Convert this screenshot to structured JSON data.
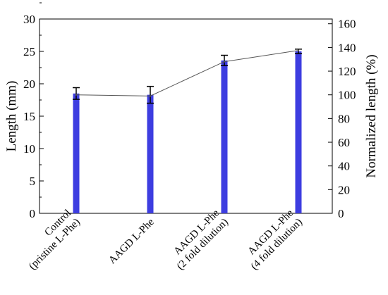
{
  "chart_data": {
    "type": "bar",
    "title": "",
    "categories": [
      [
        "Control",
        "(pristine L-Phe)"
      ],
      [
        "AAGD L-Phe"
      ],
      [
        "AAGD L-Phe",
        "(2 fold dilution)"
      ],
      [
        "AAGD L-Phe",
        "(4 fold dilution)"
      ]
    ],
    "series": [
      {
        "axis": "left",
        "chart": "bar",
        "values": [
          18.5,
          18.3,
          23.6,
          25.0
        ],
        "errors": [
          0.9,
          1.3,
          0.8,
          0.35
        ],
        "color": "#3d3de0"
      },
      {
        "axis": "right",
        "chart": "line",
        "values": [
          100,
          99,
          128,
          137.5
        ],
        "color": "#555555"
      }
    ],
    "ylabel": "Length (mm)",
    "ylim": [
      0,
      30
    ],
    "yticks": [
      0,
      5,
      10,
      15,
      20,
      25,
      30
    ],
    "y2label": "Normalized length (%)",
    "y2lim": [
      0,
      164
    ],
    "y2ticks": [
      0,
      20,
      40,
      60,
      80,
      100,
      120,
      140,
      160
    ],
    "grid": false,
    "legend": "none"
  }
}
